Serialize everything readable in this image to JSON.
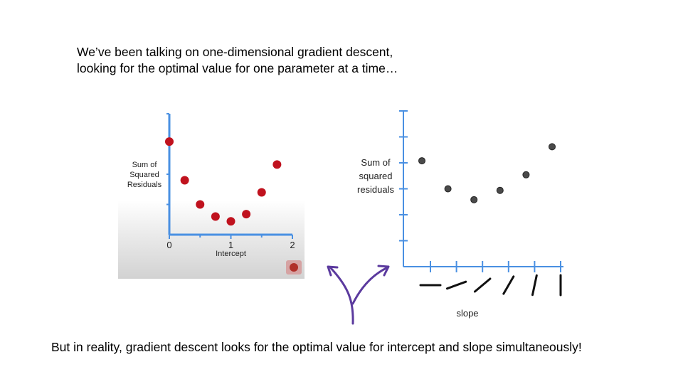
{
  "intro": {
    "line1": "We’ve been talking on one-dimensional gradient descent,",
    "line2": "looking for the optimal value for one parameter at a time…"
  },
  "conclusion": "But in reality, gradient descent looks for the optimal value for intercept and slope simultaneously!",
  "left_chart": {
    "ylabel_lines": [
      "Sum of",
      "Squared",
      "Residuals"
    ],
    "xlabel": "Intercept",
    "x_ticks": [
      "0",
      "1",
      "2"
    ],
    "x_range": [
      0,
      2
    ],
    "y_range": [
      0,
      1
    ],
    "axis_color": "#4a90e2",
    "point_color": "#c0121e",
    "points": [
      {
        "x": 0.0,
        "y": 0.77
      },
      {
        "x": 0.25,
        "y": 0.45
      },
      {
        "x": 0.5,
        "y": 0.25
      },
      {
        "x": 0.75,
        "y": 0.15
      },
      {
        "x": 1.0,
        "y": 0.11
      },
      {
        "x": 1.25,
        "y": 0.17
      },
      {
        "x": 1.5,
        "y": 0.35
      },
      {
        "x": 1.75,
        "y": 0.58
      }
    ]
  },
  "right_chart": {
    "ylabel_lines": [
      "Sum of",
      "squared",
      "residuals"
    ],
    "xlabel": "slope",
    "axis_color": "#4a90e2",
    "point_color": "#4a4a4a",
    "points": [
      {
        "slope_index": 0,
        "ssr": 0.68
      },
      {
        "slope_index": 1,
        "ssr": 0.5
      },
      {
        "slope_index": 2,
        "ssr": 0.43
      },
      {
        "slope_index": 3,
        "ssr": 0.49
      },
      {
        "slope_index": 4,
        "ssr": 0.59
      },
      {
        "slope_index": 5,
        "ssr": 0.77
      }
    ],
    "slope_icons_deg": [
      0,
      20,
      40,
      60,
      78,
      90
    ]
  },
  "arrow_color": "#5b3a9e"
}
